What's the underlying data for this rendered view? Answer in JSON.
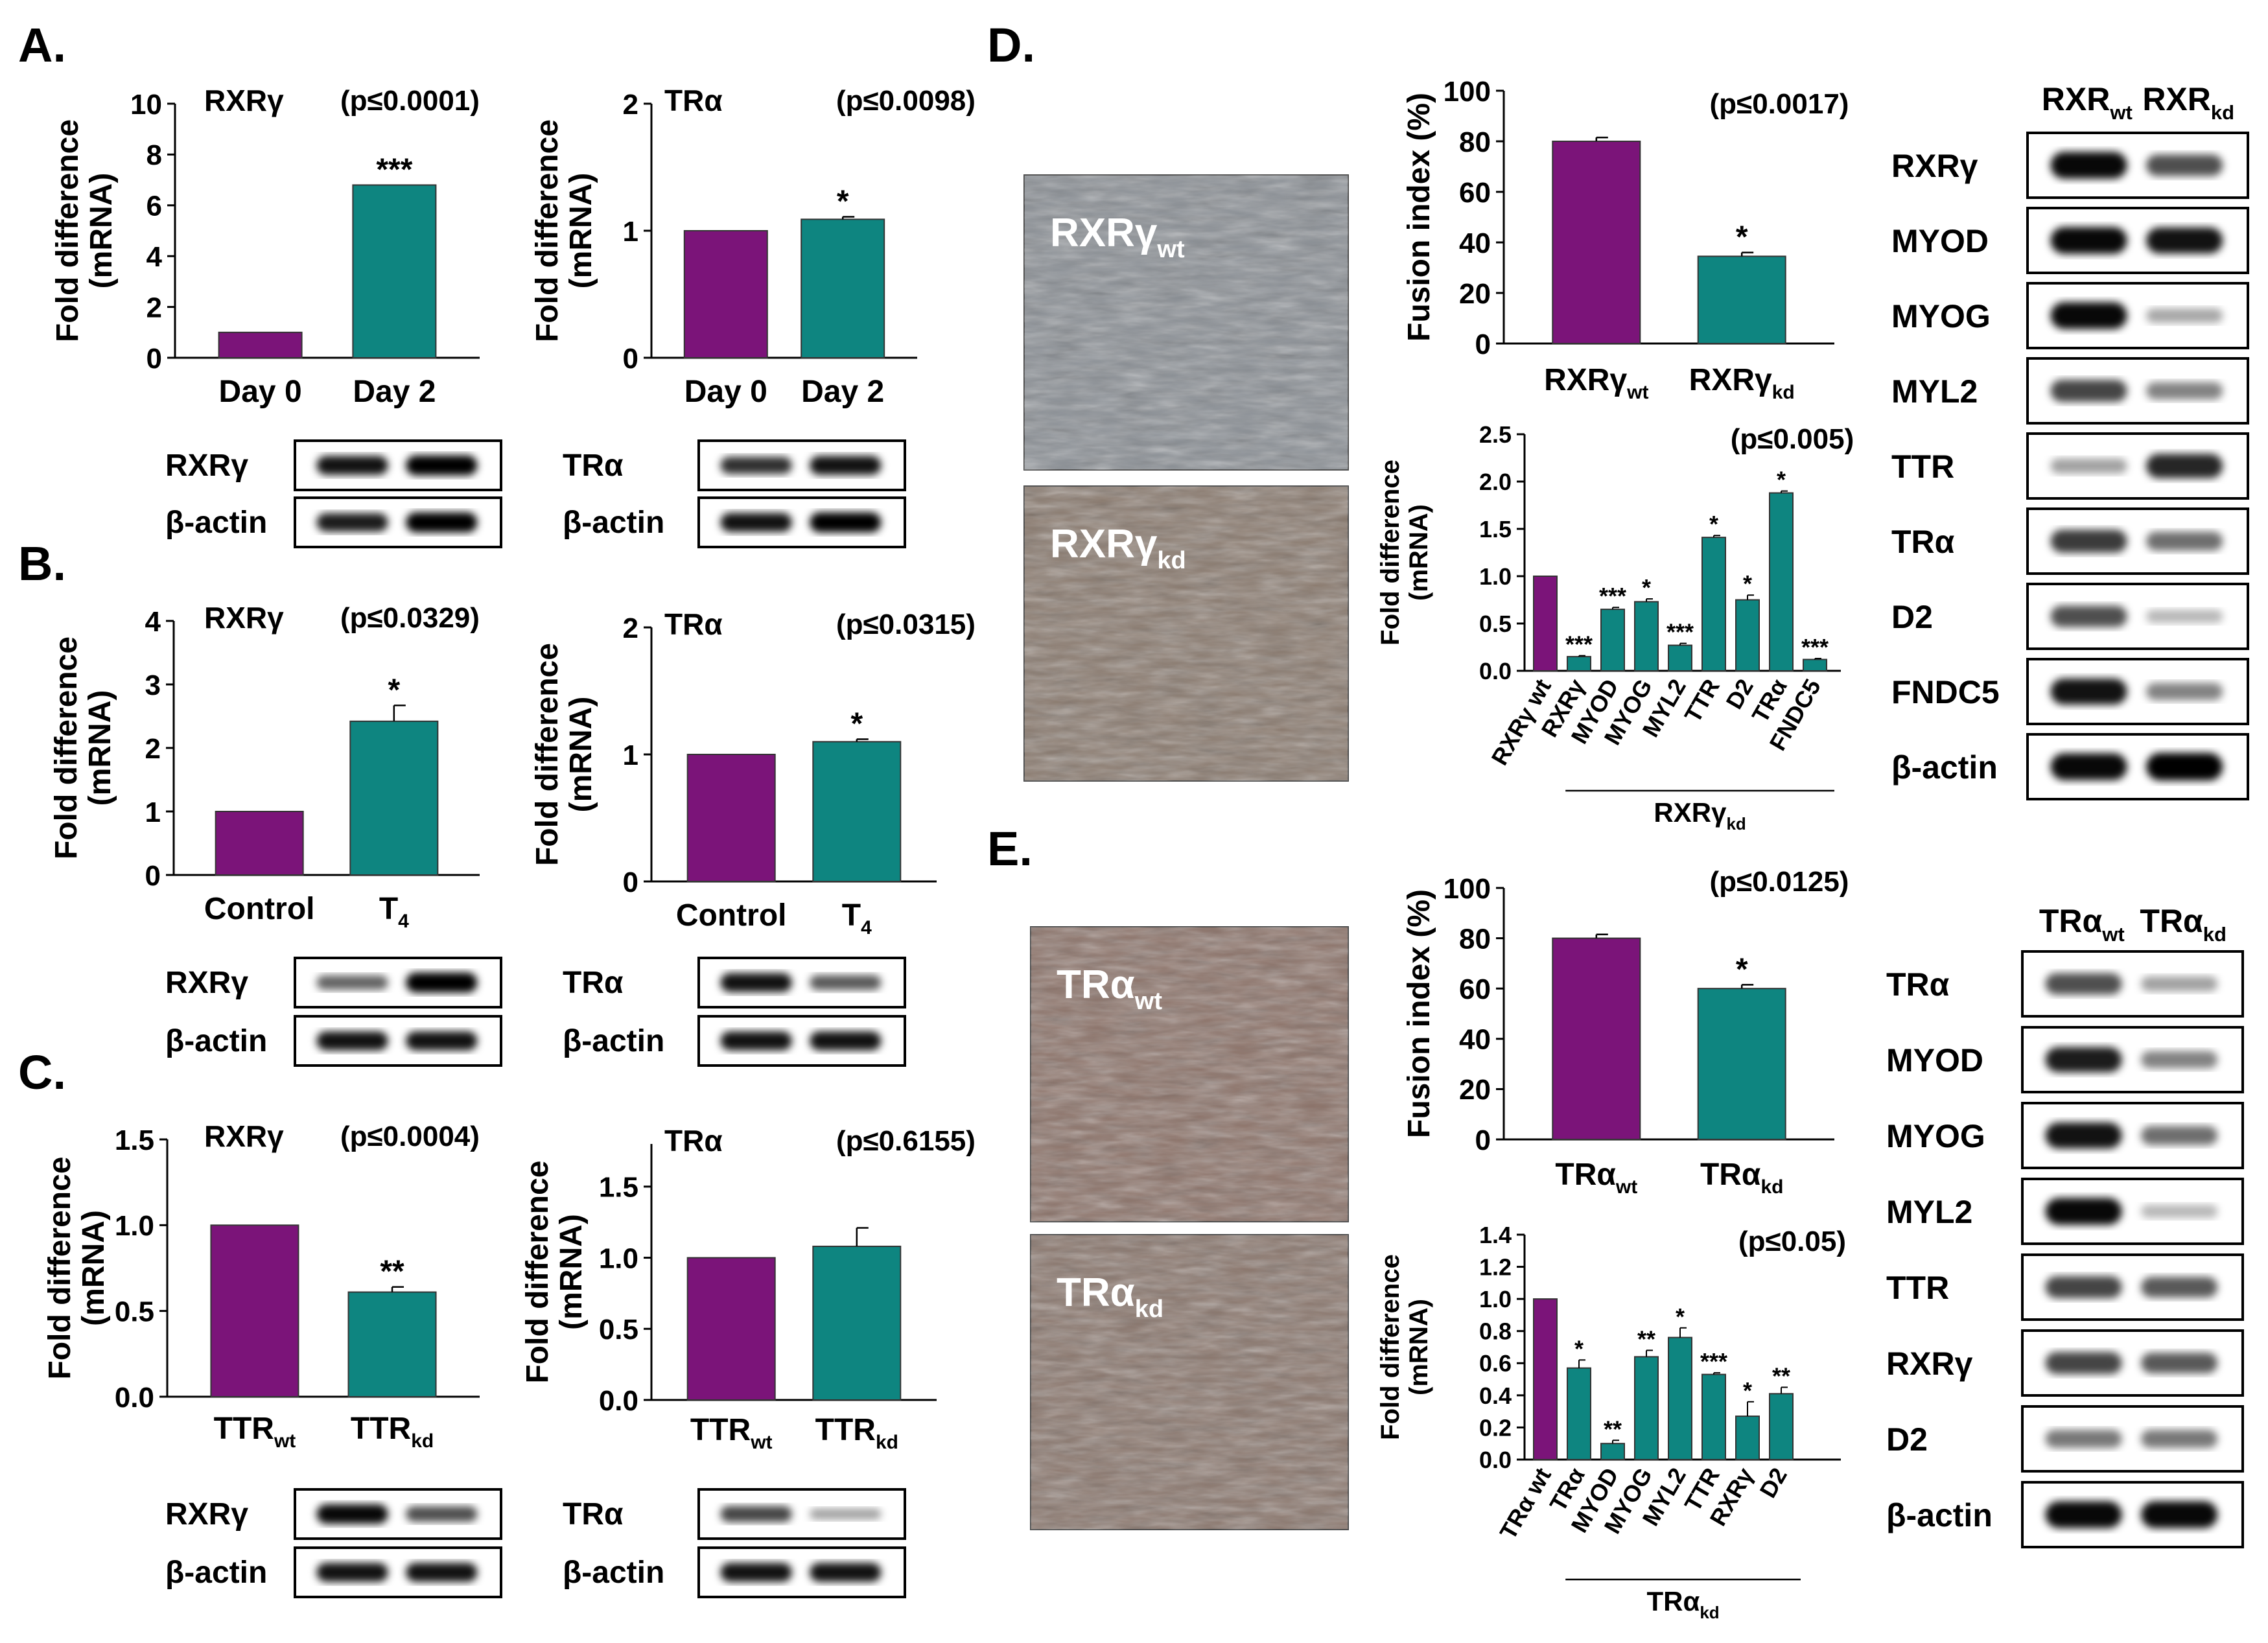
{
  "colors": {
    "wt": "#7B1479",
    "kd": "#0E8580",
    "axis": "#000000",
    "blot_frame": "#000000"
  },
  "panel_labels": [
    "A.",
    "B.",
    "C.",
    "D.",
    "E."
  ],
  "blot_label_suffix": {
    "wt": "wt",
    "kd": "kd"
  },
  "chart_data": [
    {
      "id": "A1",
      "panel": "A",
      "type": "bar",
      "gene": "RXRγ",
      "pvalue": "(p≤0.0001)",
      "ylabel": [
        "Fold difference",
        "(mRNA)"
      ],
      "ylim": [
        0,
        10
      ],
      "yticks": [
        "0",
        "2",
        "4",
        "6",
        "8",
        "10"
      ],
      "categories": [
        {
          "main": "Day 0",
          "sub": ""
        },
        {
          "main": "Day 2",
          "sub": ""
        }
      ],
      "values": [
        1,
        6.8
      ],
      "errors": [
        0,
        0
      ],
      "signif": [
        "",
        "***"
      ]
    },
    {
      "id": "A2",
      "panel": "A",
      "type": "bar",
      "gene": "TRα",
      "pvalue": "(p≤0.0098)",
      "ylabel": [
        "Fold difference",
        "(mRNA)"
      ],
      "ylim": [
        0,
        2
      ],
      "yticks": [
        "0",
        "1",
        "2"
      ],
      "categories": [
        {
          "main": "Day 0",
          "sub": ""
        },
        {
          "main": "Day 2",
          "sub": ""
        }
      ],
      "values": [
        1,
        1.09
      ],
      "errors": [
        0,
        0.02
      ],
      "signif": [
        "",
        "*"
      ]
    },
    {
      "id": "B1",
      "panel": "B",
      "type": "bar",
      "gene": "RXRγ",
      "pvalue": "(p≤0.0329)",
      "ylabel": [
        "Fold difference",
        "(mRNA)"
      ],
      "ylim": [
        0,
        4
      ],
      "yticks": [
        "0",
        "1",
        "2",
        "3",
        "4"
      ],
      "categories": [
        {
          "main": "Control",
          "sub": ""
        },
        {
          "main": "T",
          "sub": "4"
        }
      ],
      "values": [
        1,
        2.42
      ],
      "errors": [
        0,
        0.25
      ],
      "signif": [
        "",
        "*"
      ]
    },
    {
      "id": "B2",
      "panel": "B",
      "type": "bar",
      "gene": "TRα",
      "pvalue": "(p≤0.0315)",
      "ylabel": [
        "Fold difference",
        "(mRNA)"
      ],
      "ylim": [
        0,
        2
      ],
      "yticks": [
        "0",
        "1",
        "2"
      ],
      "categories": [
        {
          "main": "Control",
          "sub": ""
        },
        {
          "main": "T",
          "sub": "4"
        }
      ],
      "values": [
        1,
        1.1
      ],
      "errors": [
        0,
        0.02
      ],
      "signif": [
        "",
        "*"
      ]
    },
    {
      "id": "C1",
      "panel": "C",
      "type": "bar",
      "gene": "RXRγ",
      "pvalue": "(p≤0.0004)",
      "ylabel": [
        "Fold difference",
        "(mRNA)"
      ],
      "ylim": [
        0,
        1.5
      ],
      "yticks": [
        "0.0",
        "0.5",
        "1.0",
        "1.5"
      ],
      "categories": [
        {
          "main": "TTR",
          "sub": "wt"
        },
        {
          "main": "TTR",
          "sub": "kd"
        }
      ],
      "values": [
        1,
        0.61
      ],
      "errors": [
        0,
        0.03
      ],
      "signif": [
        "",
        "**"
      ]
    },
    {
      "id": "C2",
      "panel": "C",
      "type": "bar",
      "gene": "TRα",
      "pvalue": "(p≤0.6155)",
      "ylabel": [
        "Fold difference",
        "(mRNA)"
      ],
      "ylim": [
        0,
        1.8
      ],
      "yticks": [
        "0.0",
        "0.5",
        "1.0",
        "1.5"
      ],
      "categories": [
        {
          "main": "TTR",
          "sub": "wt"
        },
        {
          "main": "TTR",
          "sub": "kd"
        }
      ],
      "values": [
        1,
        1.08
      ],
      "errors": [
        0,
        0.13
      ],
      "signif": [
        "",
        ""
      ]
    },
    {
      "id": "D1",
      "panel": "D",
      "type": "bar",
      "gene": "",
      "pvalue": "(p≤0.0017)",
      "ylabel": [
        "Fusion index (%)"
      ],
      "ylim": [
        0,
        100
      ],
      "yticks": [
        "0",
        "20",
        "40",
        "60",
        "80",
        "100"
      ],
      "categories": [
        {
          "main": "RXRγ",
          "sub": "wt"
        },
        {
          "main": "RXRγ",
          "sub": "kd"
        }
      ],
      "values": [
        80,
        34.5
      ],
      "errors": [
        1.5,
        1.5
      ],
      "signif": [
        "",
        "*"
      ]
    },
    {
      "id": "D2",
      "panel": "D",
      "type": "bar",
      "gene": "",
      "pvalue": "(p≤0.005)",
      "ylabel": [
        "Fold difference",
        "(mRNA)"
      ],
      "ylim": [
        0,
        2.5
      ],
      "yticks": [
        "0.0",
        "0.5",
        "1.0",
        "1.5",
        "2.0",
        "2.5"
      ],
      "categories": [
        "RXRγ wt",
        "RXRγ",
        "MYOD",
        "MYOG",
        "MYL2",
        "TTR",
        "D2",
        "TRα",
        "FNDC5"
      ],
      "values": [
        1.0,
        0.15,
        0.65,
        0.73,
        0.27,
        1.41,
        0.75,
        1.88,
        0.12
      ],
      "errors": [
        0,
        0.01,
        0.02,
        0.03,
        0.02,
        0.02,
        0.05,
        0.02,
        0.01
      ],
      "signif": [
        "",
        "***",
        "***",
        "*",
        "***",
        "*",
        "*",
        "*",
        "***"
      ],
      "group": {
        "main": "RXRγ",
        "sub": "kd"
      }
    },
    {
      "id": "E1",
      "panel": "E",
      "type": "bar",
      "gene": "",
      "pvalue": "(p≤0.0125)",
      "ylabel": [
        "Fusion index (%)"
      ],
      "ylim": [
        0,
        100
      ],
      "yticks": [
        "0",
        "20",
        "40",
        "60",
        "80",
        "100"
      ],
      "categories": [
        {
          "main": "TRα",
          "sub": "wt"
        },
        {
          "main": "TRα",
          "sub": "kd"
        }
      ],
      "values": [
        80,
        60
      ],
      "errors": [
        1.5,
        1.5
      ],
      "signif": [
        "",
        "*"
      ]
    },
    {
      "id": "E2",
      "panel": "E",
      "type": "bar",
      "gene": "",
      "pvalue": "(p≤0.05)",
      "ylabel": [
        "Fold difference",
        "(mRNA)"
      ],
      "ylim": [
        0,
        1.4
      ],
      "yticks": [
        "0.0",
        "0.2",
        "0.4",
        "0.6",
        "0.8",
        "1.0",
        "1.2",
        "1.4"
      ],
      "categories": [
        "TRα wt",
        "TRα",
        "MYOD",
        "MYOG",
        "MYL2",
        "TTR",
        "RXRγ",
        "D2"
      ],
      "values": [
        1.0,
        0.57,
        0.1,
        0.64,
        0.76,
        0.53,
        0.27,
        0.41
      ],
      "errors": [
        0,
        0.05,
        0.02,
        0.04,
        0.06,
        0.01,
        0.09,
        0.04
      ],
      "signif": [
        "",
        "*",
        "**",
        "**",
        "*",
        "***",
        "*",
        "**"
      ],
      "group": {
        "main": "TRα",
        "sub": "kd"
      }
    }
  ],
  "blots": {
    "A1": [
      {
        "label": "RXRγ",
        "left": 0.85,
        "right": 0.95
      },
      {
        "label": "β-actin",
        "left": 0.8,
        "right": 0.95
      }
    ],
    "A2": [
      {
        "label": "TRα",
        "left": 0.7,
        "right": 0.85
      },
      {
        "label": "β-actin",
        "left": 0.85,
        "right": 0.95
      }
    ],
    "B1": [
      {
        "label": "RXRγ",
        "left": 0.45,
        "right": 0.95
      },
      {
        "label": "β-actin",
        "left": 0.85,
        "right": 0.85
      }
    ],
    "B2": [
      {
        "label": "TRα",
        "left": 0.85,
        "right": 0.5
      },
      {
        "label": "β-actin",
        "left": 0.85,
        "right": 0.85
      }
    ],
    "C1": [
      {
        "label": "RXRγ",
        "left": 0.9,
        "right": 0.55
      },
      {
        "label": "β-actin",
        "left": 0.85,
        "right": 0.85
      }
    ],
    "C2": [
      {
        "label": "TRα",
        "left": 0.6,
        "right": 0.15
      },
      {
        "label": "β-actin",
        "left": 0.85,
        "right": 0.85
      }
    ],
    "D": {
      "header": {
        "wt": "RXR",
        "kd": "RXR"
      },
      "rows": [
        {
          "label": "RXRγ",
          "left": 0.9,
          "right": 0.55
        },
        {
          "label": "MYOD",
          "left": 0.9,
          "right": 0.85
        },
        {
          "label": "MYOG",
          "left": 0.9,
          "right": 0.12
        },
        {
          "label": "MYL2",
          "left": 0.6,
          "right": 0.3
        },
        {
          "label": "TTR",
          "left": 0.15,
          "right": 0.75
        },
        {
          "label": "TRα",
          "left": 0.65,
          "right": 0.4
        },
        {
          "label": "D2",
          "left": 0.55,
          "right": 0.04
        },
        {
          "label": "FNDC5",
          "left": 0.85,
          "right": 0.3
        },
        {
          "label": "β-actin",
          "left": 0.9,
          "right": 0.95
        }
      ]
    },
    "E": {
      "header": {
        "wt": "TRα",
        "kd": "TRα"
      },
      "rows": [
        {
          "label": "TRα",
          "left": 0.55,
          "right": 0.15
        },
        {
          "label": "MYOD",
          "left": 0.8,
          "right": 0.3
        },
        {
          "label": "MYOG",
          "left": 0.85,
          "right": 0.4
        },
        {
          "label": "MYL2",
          "left": 0.9,
          "right": 0.04
        },
        {
          "label": "TTR",
          "left": 0.6,
          "right": 0.5
        },
        {
          "label": "RXRγ",
          "left": 0.6,
          "right": 0.5
        },
        {
          "label": "D2",
          "left": 0.35,
          "right": 0.35
        },
        {
          "label": "β-actin",
          "left": 0.9,
          "right": 0.9
        }
      ]
    }
  },
  "micrographs": [
    {
      "label": "RXRγ",
      "sub": "wt"
    },
    {
      "label": "RXRγ",
      "sub": "kd"
    },
    {
      "label": "TRα",
      "sub": "wt"
    },
    {
      "label": "TRα",
      "sub": "kd"
    }
  ]
}
